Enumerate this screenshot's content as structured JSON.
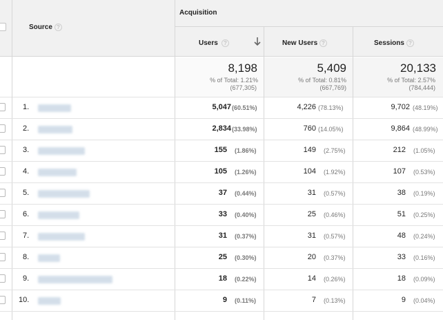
{
  "header": {
    "source_label": "Source",
    "acquisition_label": "Acquisition",
    "columns": [
      {
        "label": "Users",
        "sorted": true
      },
      {
        "label": "New Users",
        "sorted": false
      },
      {
        "label": "Sessions",
        "sorted": false
      }
    ]
  },
  "totals": [
    {
      "value": "8,198",
      "pct": "% of Total: 1.21%",
      "total": "(677,305)"
    },
    {
      "value": "5,409",
      "pct": "% of Total: 0.81%",
      "total": "(667,769)"
    },
    {
      "value": "20,133",
      "pct": "% of Total: 2.57%",
      "total": "(784,444)"
    }
  ],
  "rows": [
    {
      "n": "1.",
      "users": "5,047",
      "users_pct": "(60.51%)",
      "new_users": "4,226",
      "new_users_pct": "(78.13%)",
      "sessions": "9,702",
      "sessions_pct": "(48.19%)"
    },
    {
      "n": "2.",
      "users": "2,834",
      "users_pct": "(33.98%)",
      "new_users": "760",
      "new_users_pct": "(14.05%)",
      "sessions": "9,864",
      "sessions_pct": "(48.99%)"
    },
    {
      "n": "3.",
      "users": "155",
      "users_pct": "(1.86%)",
      "new_users": "149",
      "new_users_pct": "(2.75%)",
      "sessions": "212",
      "sessions_pct": "(1.05%)"
    },
    {
      "n": "4.",
      "users": "105",
      "users_pct": "(1.26%)",
      "new_users": "104",
      "new_users_pct": "(1.92%)",
      "sessions": "107",
      "sessions_pct": "(0.53%)"
    },
    {
      "n": "5.",
      "users": "37",
      "users_pct": "(0.44%)",
      "new_users": "31",
      "new_users_pct": "(0.57%)",
      "sessions": "38",
      "sessions_pct": "(0.19%)"
    },
    {
      "n": "6.",
      "users": "33",
      "users_pct": "(0.40%)",
      "new_users": "25",
      "new_users_pct": "(0.46%)",
      "sessions": "51",
      "sessions_pct": "(0.25%)"
    },
    {
      "n": "7.",
      "users": "31",
      "users_pct": "(0.37%)",
      "new_users": "31",
      "new_users_pct": "(0.57%)",
      "sessions": "48",
      "sessions_pct": "(0.24%)"
    },
    {
      "n": "8.",
      "users": "25",
      "users_pct": "(0.30%)",
      "new_users": "20",
      "new_users_pct": "(0.37%)",
      "sessions": "33",
      "sessions_pct": "(0.16%)"
    },
    {
      "n": "9.",
      "users": "18",
      "users_pct": "(0.22%)",
      "new_users": "14",
      "new_users_pct": "(0.26%)",
      "sessions": "18",
      "sessions_pct": "(0.09%)"
    },
    {
      "n": "10.",
      "users": "9",
      "users_pct": "(0.11%)",
      "new_users": "7",
      "new_users_pct": "(0.13%)",
      "sessions": "9",
      "sessions_pct": "(0.04%)"
    }
  ],
  "icons": {
    "help": "help-circle-icon",
    "sort": "arrow-down-icon"
  }
}
